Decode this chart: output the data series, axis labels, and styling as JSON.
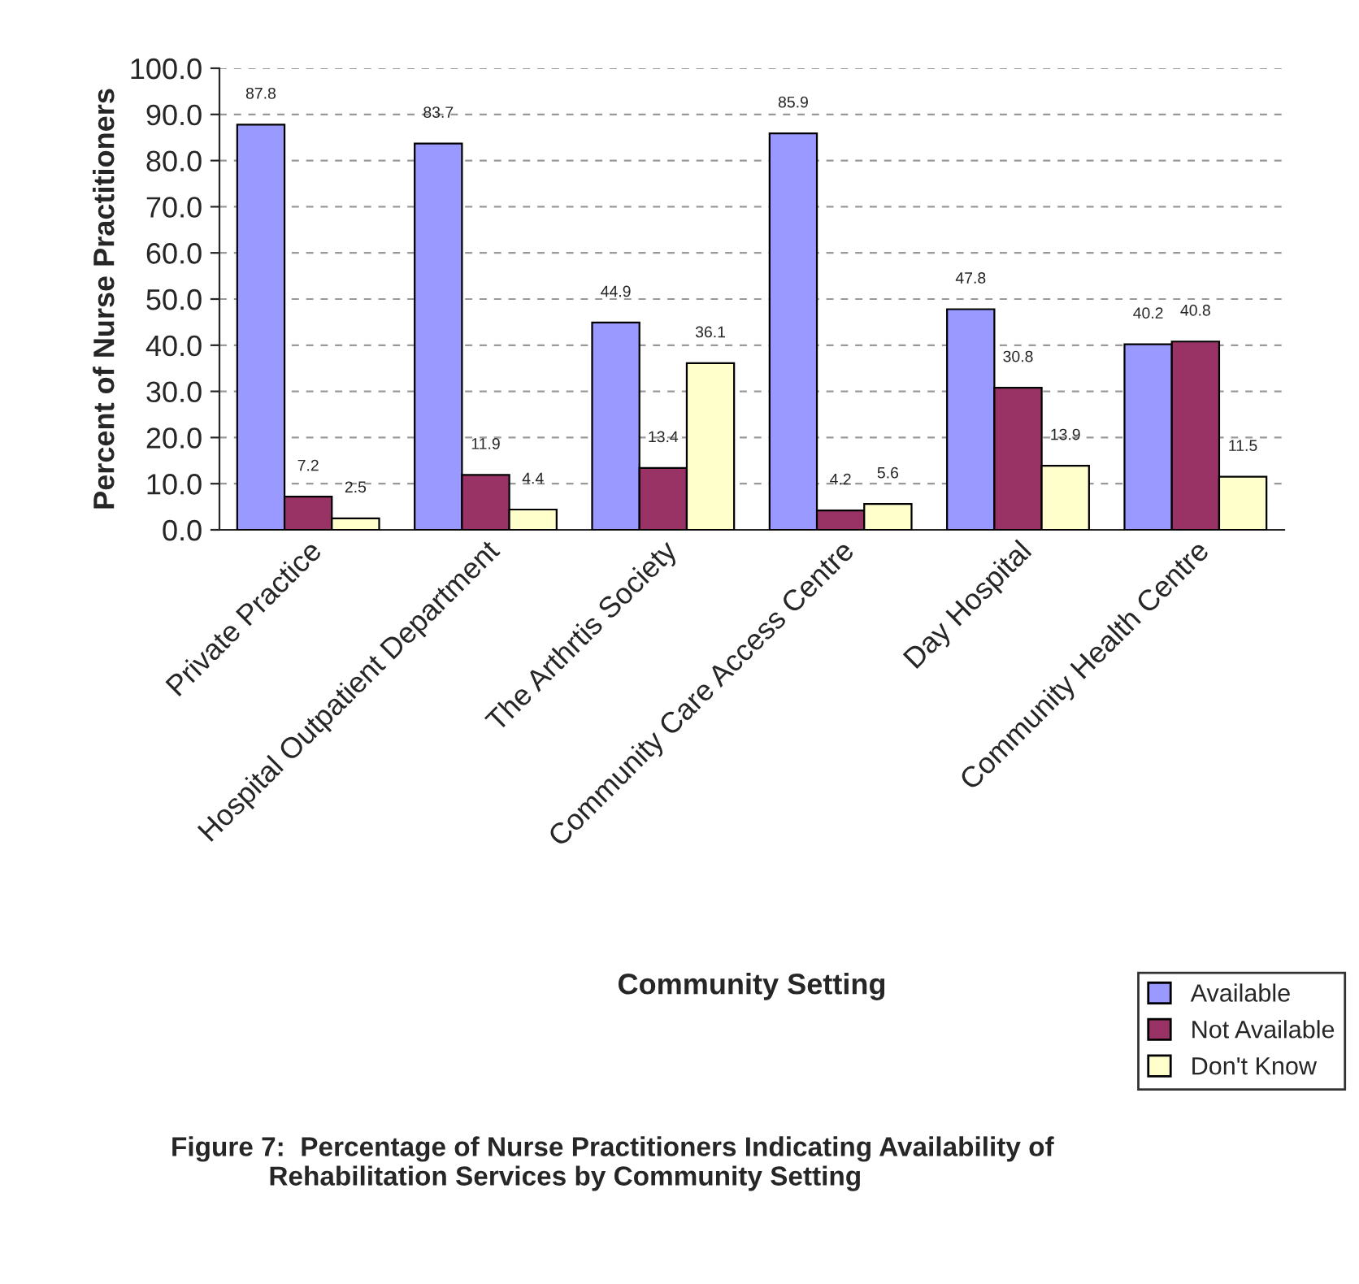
{
  "chart_data": {
    "type": "bar",
    "categories": [
      "Private Practice",
      "Hospital Outpatient Department",
      "The Arthrtis Society",
      "Community Care Access Centre",
      "Day Hospital",
      "Community Health Centre"
    ],
    "series": [
      {
        "name": "Available",
        "color": "#9999ff",
        "values": [
          87.8,
          83.7,
          44.9,
          85.9,
          47.8,
          40.2
        ]
      },
      {
        "name": "Not Available",
        "color": "#993366",
        "values": [
          7.2,
          11.9,
          13.4,
          4.2,
          30.8,
          40.8
        ]
      },
      {
        "name": "Don't Know",
        "color": "#ffffcc",
        "values": [
          2.5,
          4.4,
          36.1,
          5.6,
          13.9,
          11.5
        ]
      }
    ],
    "xlabel": "Community Setting",
    "ylabel": "Percent of Nurse Practitioners",
    "ylim": [
      0,
      100
    ],
    "yticks": [
      {
        "value": 0,
        "label": "0.0"
      },
      {
        "value": 10,
        "label": "10.0"
      },
      {
        "value": 20,
        "label": "20.0"
      },
      {
        "value": 30,
        "label": "30.0"
      },
      {
        "value": 40,
        "label": "40.0"
      },
      {
        "value": 50,
        "label": "50.0"
      },
      {
        "value": 60,
        "label": "60.0"
      },
      {
        "value": 70,
        "label": "70.0"
      },
      {
        "value": 80,
        "label": "80.0"
      },
      {
        "value": 90,
        "label": "90.0"
      },
      {
        "value": 100,
        "label": "100.0"
      }
    ],
    "grid": "y",
    "legend": "bottom right",
    "data_labels": true,
    "annotations": [
      "Figure 7:  Percentage of Nurse Practitioners Indicating Availability of\n             Rehabilitation Services by Community Setting"
    ]
  }
}
